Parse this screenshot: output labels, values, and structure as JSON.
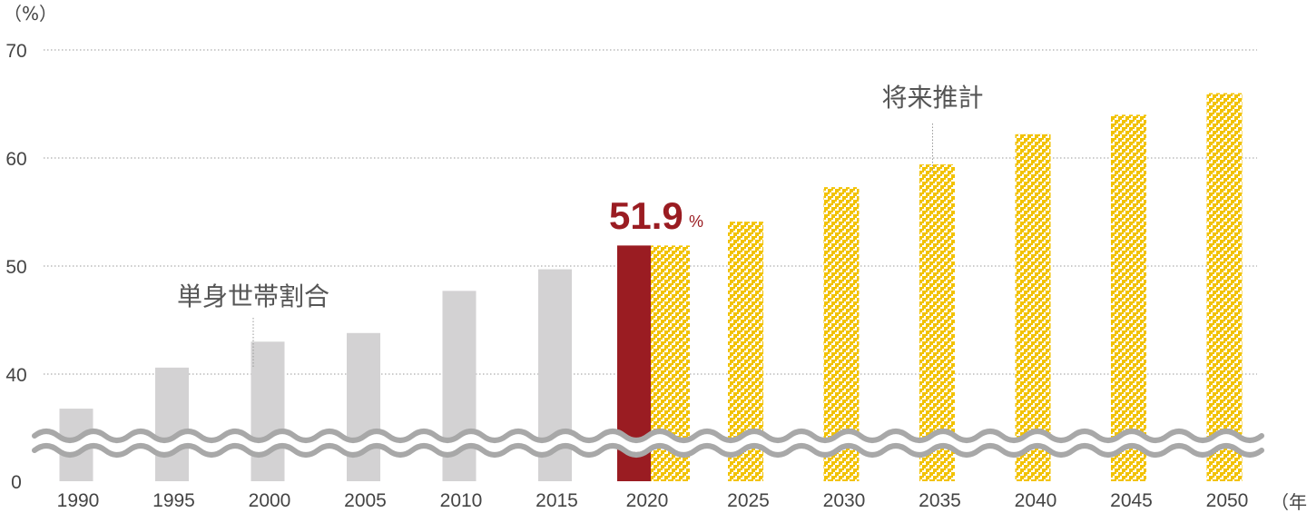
{
  "chart_data": {
    "type": "bar",
    "y_unit": "（%）",
    "x_unit": "（年）",
    "ylim": [
      0,
      70
    ],
    "y_ticks": [
      0,
      40,
      50,
      60,
      70
    ],
    "axis_break": true,
    "grid": true,
    "categories": [
      "1990",
      "1995",
      "2000",
      "2005",
      "2010",
      "2015",
      "2020",
      "2025",
      "2030",
      "2035",
      "2040",
      "2045",
      "2050"
    ],
    "series": [
      {
        "name": "単身世帯割合",
        "style": "solid-gray",
        "color": "#d3d2d3",
        "values": [
          36.8,
          40.6,
          43.0,
          43.8,
          47.7,
          49.7,
          51.9,
          null,
          null,
          null,
          null,
          null,
          null
        ]
      },
      {
        "name": "将来推計",
        "style": "yellow-checker",
        "color": "#f2c200",
        "values": [
          null,
          null,
          null,
          null,
          null,
          null,
          51.9,
          54.1,
          57.3,
          59.4,
          62.2,
          64.0,
          66.0
        ]
      }
    ],
    "highlight": {
      "category": "2020",
      "value_text": "51.9",
      "unit_text": "%",
      "color": "#9a1c22"
    },
    "annotations": [
      {
        "text": "単身世帯割合",
        "category": "2000"
      },
      {
        "text": "将来推計",
        "category": "2035"
      }
    ]
  }
}
